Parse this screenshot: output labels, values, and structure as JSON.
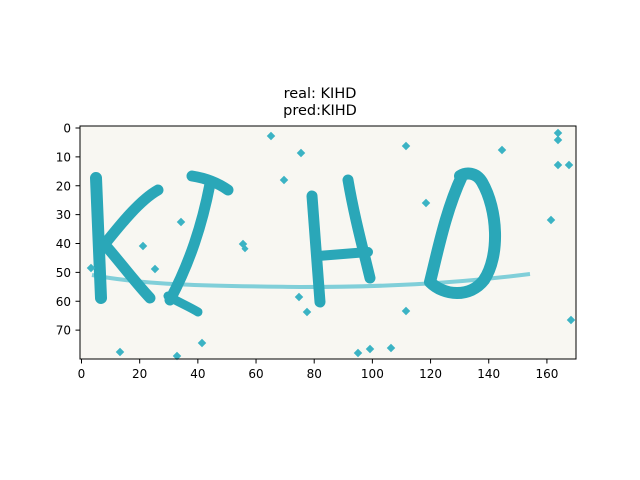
{
  "title": {
    "line1": "real: KIHD",
    "line2": "pred:KIHD"
  },
  "captcha_text": "KIHD",
  "colors": {
    "background": "#f8f7f2",
    "ink": "#2aa7b8",
    "noise": "#3bb3c4",
    "strike": "#80cfd9"
  },
  "x_axis": {
    "ticks": [
      "0",
      "20",
      "40",
      "60",
      "80",
      "100",
      "120",
      "140",
      "160"
    ],
    "range": [
      0,
      170
    ]
  },
  "y_axis": {
    "ticks": [
      "0",
      "10",
      "20",
      "30",
      "40",
      "50",
      "60",
      "70"
    ],
    "range": [
      0,
      80
    ],
    "inverted": true
  }
}
